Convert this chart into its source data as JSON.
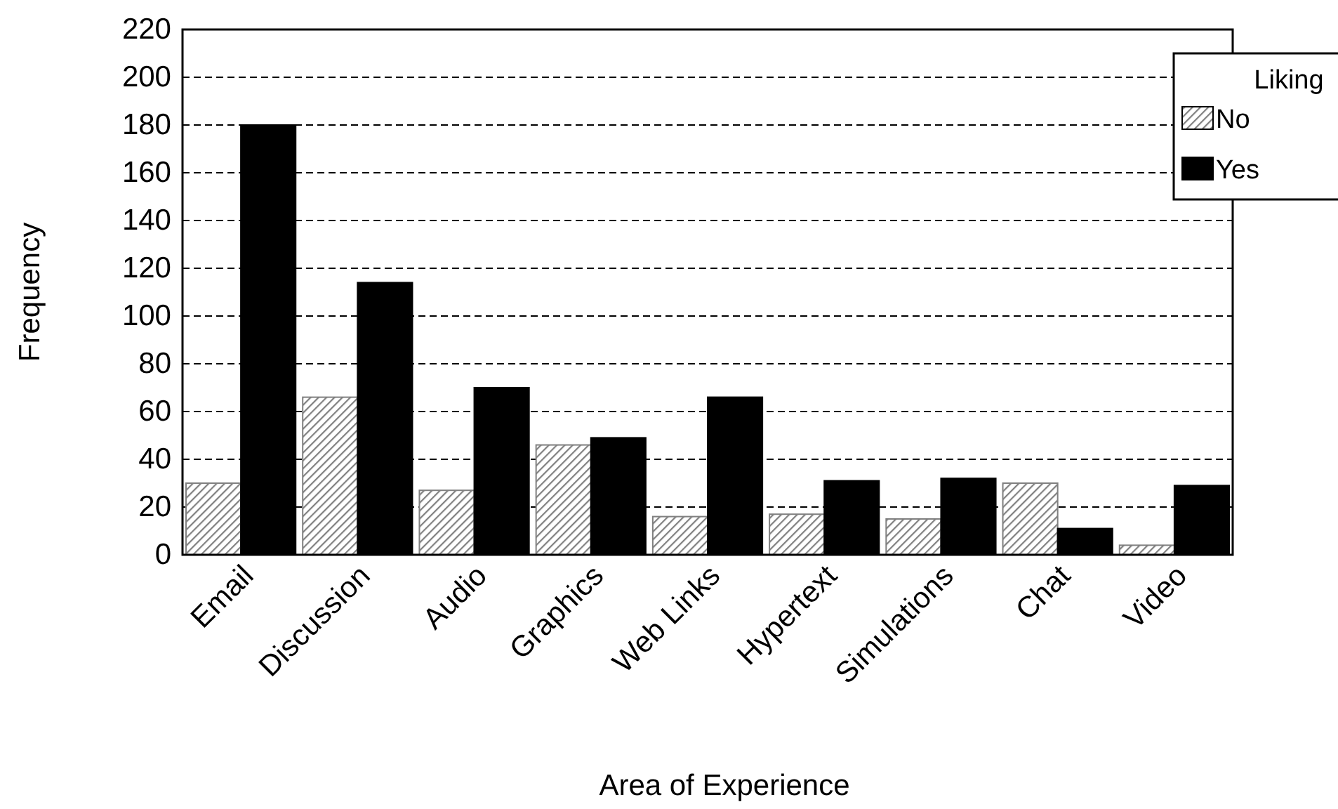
{
  "chart_data": {
    "type": "bar",
    "xlabel": "Area of Experience",
    "ylabel": "Frequency",
    "legend_title": "Liking",
    "categories": [
      "Email",
      "Discussion",
      "Audio",
      "Graphics",
      "Web Links",
      "Hypertext",
      "Simulations",
      "Chat",
      "Video"
    ],
    "series": [
      {
        "name": "No",
        "color": "#808080",
        "values": [
          30,
          66,
          27,
          46,
          16,
          17,
          15,
          30,
          4
        ]
      },
      {
        "name": "Yes",
        "color": "#000000",
        "values": [
          180,
          114,
          70,
          49,
          66,
          31,
          32,
          11,
          29
        ]
      }
    ],
    "ylim": [
      0,
      220
    ],
    "yticks": [
      0,
      20,
      40,
      60,
      80,
      100,
      120,
      140,
      160,
      180,
      200,
      220
    ],
    "grid": "y",
    "legend": "top right"
  }
}
